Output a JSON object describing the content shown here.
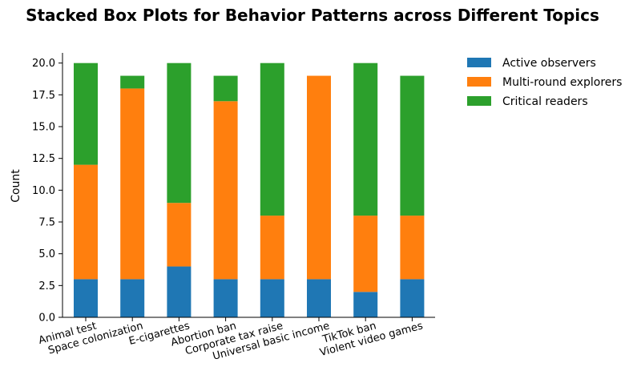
{
  "chart_data": {
    "type": "bar",
    "stacked": true,
    "title": "Stacked Box Plots for Behavior Patterns across Different Topics",
    "xlabel": "",
    "ylabel": "Count",
    "ylim": [
      0,
      20.8
    ],
    "yticks": [
      "0.0",
      "2.5",
      "5.0",
      "7.5",
      "10.0",
      "12.5",
      "15.0",
      "17.5",
      "20.0"
    ],
    "categories": [
      "Animal test",
      "Space colonization",
      "E-cigarettes",
      "Abortion ban",
      "Corporate tax raise",
      "Universal basic income",
      "TikTok ban",
      "Violent video games"
    ],
    "series": [
      {
        "name": "Active observers",
        "color": "#1f77b4",
        "values": [
          3,
          3,
          4,
          3,
          3,
          3,
          2,
          3
        ]
      },
      {
        "name": "Multi-round explorers",
        "color": "#ff7f0e",
        "values": [
          9,
          15,
          5,
          14,
          5,
          16,
          6,
          5
        ]
      },
      {
        "name": "Critical readers",
        "color": "#2ca02c",
        "values": [
          8,
          1,
          11,
          2,
          12,
          0,
          12,
          11
        ]
      }
    ],
    "grid": false,
    "legend_position": "top-right-outside"
  }
}
